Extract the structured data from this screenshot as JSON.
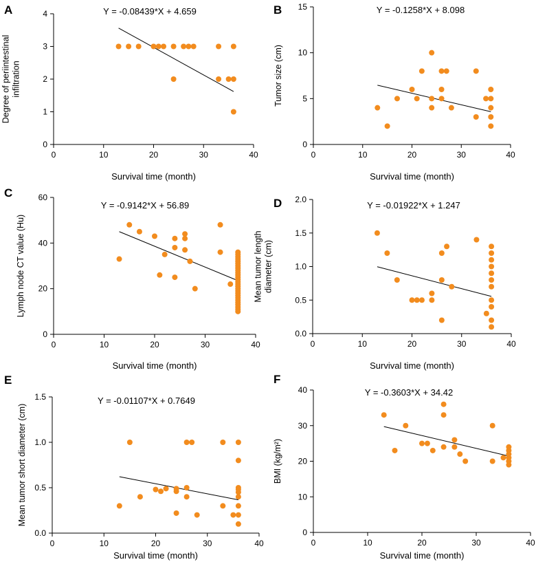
{
  "figure": {
    "marker_color": "#F28C1E",
    "line_color": "#000000"
  },
  "chart_data": [
    {
      "panel": "A",
      "type": "scatter",
      "equation": "Y = -0.08439*X + 4.659",
      "fit": {
        "slope": -0.08439,
        "intercept": 4.659,
        "x_range": [
          13,
          36
        ]
      },
      "xlabel": "Survival time (month)",
      "ylabel": [
        "Degree of periintestinal",
        "infiltration"
      ],
      "xlim": [
        0,
        40
      ],
      "ylim": [
        0,
        4
      ],
      "xticks": [
        0,
        10,
        20,
        30,
        40
      ],
      "yticks": [
        0,
        1,
        2,
        3,
        4
      ],
      "points": [
        [
          13,
          3
        ],
        [
          15,
          3
        ],
        [
          17,
          3
        ],
        [
          20,
          3
        ],
        [
          21,
          3
        ],
        [
          22,
          3
        ],
        [
          24,
          3
        ],
        [
          24,
          2
        ],
        [
          26,
          3
        ],
        [
          27,
          3
        ],
        [
          28,
          3
        ],
        [
          33,
          3
        ],
        [
          33,
          2
        ],
        [
          35,
          2
        ],
        [
          36,
          3
        ],
        [
          36,
          2
        ],
        [
          36,
          1
        ]
      ]
    },
    {
      "panel": "B",
      "type": "scatter",
      "equation": "Y = -0.1258*X + 8.098",
      "fit": {
        "slope": -0.1258,
        "intercept": 8.098,
        "x_range": [
          13,
          36
        ]
      },
      "xlabel": "Survival time (month)",
      "ylabel": [
        "Tumor size (cm)"
      ],
      "xlim": [
        0,
        40
      ],
      "ylim": [
        0,
        15
      ],
      "xticks": [
        0,
        10,
        20,
        30,
        40
      ],
      "yticks": [
        0,
        5,
        10,
        15
      ],
      "points": [
        [
          13,
          4
        ],
        [
          15,
          2
        ],
        [
          17,
          5
        ],
        [
          20,
          6
        ],
        [
          21,
          5
        ],
        [
          22,
          8
        ],
        [
          24,
          10
        ],
        [
          24,
          5
        ],
        [
          24,
          4
        ],
        [
          26,
          8
        ],
        [
          26,
          6
        ],
        [
          26,
          5
        ],
        [
          27,
          8
        ],
        [
          28,
          4
        ],
        [
          33,
          8
        ],
        [
          33,
          3
        ],
        [
          35,
          5
        ],
        [
          36,
          6
        ],
        [
          36,
          5
        ],
        [
          36,
          4
        ],
        [
          36,
          3
        ],
        [
          36,
          2
        ]
      ]
    },
    {
      "panel": "C",
      "type": "scatter",
      "equation": "Y = -0.9142*X + 56.89",
      "fit": {
        "slope": -0.9142,
        "intercept": 56.89,
        "x_range": [
          13,
          36.5
        ]
      },
      "xlabel": "Survival time (month)",
      "ylabel": [
        "Lymph node CT value (Hu)"
      ],
      "xlim": [
        0,
        40
      ],
      "ylim": [
        0,
        60
      ],
      "xticks": [
        0,
        10,
        20,
        30,
        40
      ],
      "yticks": [
        0,
        20,
        40,
        60
      ],
      "points": [
        [
          13,
          33
        ],
        [
          15,
          48
        ],
        [
          17,
          45
        ],
        [
          20,
          43
        ],
        [
          21,
          26
        ],
        [
          22,
          35
        ],
        [
          24,
          42
        ],
        [
          24,
          38
        ],
        [
          24,
          25
        ],
        [
          26,
          44
        ],
        [
          26,
          42
        ],
        [
          26,
          37
        ],
        [
          27,
          32
        ],
        [
          28,
          20
        ],
        [
          33,
          48
        ],
        [
          33,
          36
        ],
        [
          35,
          22
        ],
        [
          36.5,
          36
        ],
        [
          36.5,
          35
        ],
        [
          36.5,
          34
        ],
        [
          36.5,
          33
        ],
        [
          36.5,
          32
        ],
        [
          36.5,
          31
        ],
        [
          36.5,
          30
        ],
        [
          36.5,
          29
        ],
        [
          36.5,
          28
        ],
        [
          36.5,
          27
        ],
        [
          36.5,
          26
        ],
        [
          36.5,
          25
        ],
        [
          36.5,
          24
        ],
        [
          36.5,
          23
        ],
        [
          36.5,
          22
        ],
        [
          36.5,
          21
        ],
        [
          36.5,
          20
        ],
        [
          36.5,
          19
        ],
        [
          36.5,
          18
        ],
        [
          36.5,
          17
        ],
        [
          36.5,
          16
        ],
        [
          36.5,
          15
        ],
        [
          36.5,
          14
        ],
        [
          36.5,
          13
        ],
        [
          36.5,
          12
        ],
        [
          36.5,
          11
        ],
        [
          36.5,
          10
        ]
      ]
    },
    {
      "panel": "D",
      "type": "scatter",
      "equation": "Y = -0.01922*X + 1.247",
      "fit": {
        "slope": -0.01922,
        "intercept": 1.247,
        "x_range": [
          13,
          36
        ]
      },
      "xlabel": "Survival time (month)",
      "ylabel": [
        "Mean tumor length",
        "diameter (cm)"
      ],
      "xlim": [
        0,
        40
      ],
      "ylim": [
        0,
        2.0
      ],
      "xticks": [
        0,
        10,
        20,
        30,
        40
      ],
      "yticks": [
        0.0,
        0.5,
        1.0,
        1.5,
        2.0
      ],
      "ytick_labels": [
        "0.0",
        "0.5",
        "1.0",
        "1.5",
        "2.0"
      ],
      "points": [
        [
          13,
          1.5
        ],
        [
          15,
          1.2
        ],
        [
          17,
          0.8
        ],
        [
          20,
          0.5
        ],
        [
          21,
          0.5
        ],
        [
          22,
          0.5
        ],
        [
          24,
          0.6
        ],
        [
          24,
          0.5
        ],
        [
          26,
          1.2
        ],
        [
          26,
          0.8
        ],
        [
          26,
          0.2
        ],
        [
          27,
          1.3
        ],
        [
          28,
          0.7
        ],
        [
          33,
          1.4
        ],
        [
          35,
          0.3
        ],
        [
          36,
          1.3
        ],
        [
          36,
          1.2
        ],
        [
          36,
          1.1
        ],
        [
          36,
          1.0
        ],
        [
          36,
          0.9
        ],
        [
          36,
          0.8
        ],
        [
          36,
          0.7
        ],
        [
          36,
          0.5
        ],
        [
          36,
          0.4
        ],
        [
          36,
          0.2
        ],
        [
          36,
          0.1
        ]
      ]
    },
    {
      "panel": "E",
      "type": "scatter",
      "equation": "Y = -0.01107*X + 0.7649",
      "fit": {
        "slope": -0.01107,
        "intercept": 0.7649,
        "x_range": [
          13,
          36
        ]
      },
      "xlabel": "Survival time (month)",
      "ylabel": [
        "Mean tumor short diameter (cm)"
      ],
      "xlim": [
        0,
        40
      ],
      "ylim": [
        0,
        1.5
      ],
      "xticks": [
        0,
        10,
        20,
        30,
        40
      ],
      "yticks": [
        0.0,
        0.5,
        1.0,
        1.5
      ],
      "ytick_labels": [
        "0.0",
        "0.5",
        "1.0",
        "1.5"
      ],
      "points": [
        [
          13,
          0.3
        ],
        [
          15,
          1.0
        ],
        [
          17,
          0.4
        ],
        [
          20,
          0.48
        ],
        [
          21,
          0.46
        ],
        [
          22,
          0.49
        ],
        [
          24,
          0.49
        ],
        [
          24,
          0.46
        ],
        [
          24,
          0.22
        ],
        [
          26,
          1.0
        ],
        [
          26,
          0.5
        ],
        [
          26,
          0.4
        ],
        [
          27,
          1.0
        ],
        [
          28,
          0.2
        ],
        [
          33,
          1.0
        ],
        [
          33,
          0.3
        ],
        [
          35,
          0.2
        ],
        [
          36,
          1.0
        ],
        [
          36,
          0.8
        ],
        [
          36,
          0.5
        ],
        [
          36,
          0.48
        ],
        [
          36,
          0.45
        ],
        [
          36,
          0.4
        ],
        [
          36,
          0.3
        ],
        [
          36,
          0.2
        ],
        [
          36,
          0.1
        ]
      ]
    },
    {
      "panel": "F",
      "type": "scatter",
      "equation": "Y = -0.3603*X + 34.42",
      "fit": {
        "slope": -0.3603,
        "intercept": 34.42,
        "x_range": [
          13,
          36
        ]
      },
      "xlabel": "Survival time (month)",
      "ylabel": [
        "BMI (kg/m²)"
      ],
      "xlim": [
        0,
        40
      ],
      "ylim": [
        0,
        40
      ],
      "xticks": [
        0,
        10,
        20,
        30,
        40
      ],
      "yticks": [
        0,
        10,
        20,
        30,
        40
      ],
      "points": [
        [
          13,
          33
        ],
        [
          15,
          23
        ],
        [
          17,
          30
        ],
        [
          20,
          25
        ],
        [
          21,
          25
        ],
        [
          22,
          23
        ],
        [
          24,
          36
        ],
        [
          24,
          33
        ],
        [
          24,
          24
        ],
        [
          26,
          26
        ],
        [
          26,
          24
        ],
        [
          27,
          22
        ],
        [
          28,
          20
        ],
        [
          33,
          30
        ],
        [
          33,
          20
        ],
        [
          35,
          21
        ],
        [
          36,
          24
        ],
        [
          36,
          23
        ],
        [
          36,
          22
        ],
        [
          36,
          21
        ],
        [
          36,
          20
        ],
        [
          36,
          19
        ]
      ]
    }
  ]
}
